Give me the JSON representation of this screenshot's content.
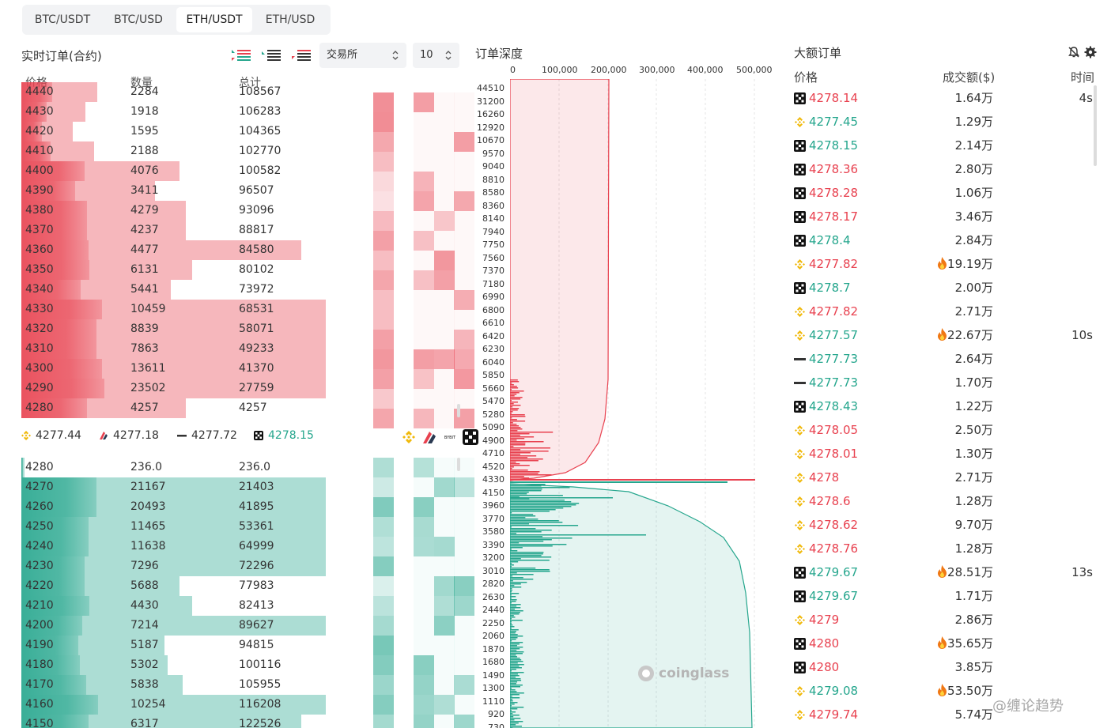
{
  "tabs": [
    "BTC/USDT",
    "BTC/USD",
    "ETH/USDT",
    "ETH/USD"
  ],
  "orderbook": {
    "title": "实时订单(合约)",
    "exchange_select": "交易所",
    "depth_select": "10",
    "col_price": "价格",
    "col_qty": "数量",
    "col_total": "总计",
    "asks": [
      {
        "p": "4440",
        "q": "2284",
        "t": "108567",
        "f": 0.25
      },
      {
        "p": "4430",
        "q": "1918",
        "t": "106283",
        "f": 0.21
      },
      {
        "p": "4420",
        "q": "1595",
        "t": "104365",
        "f": 0.17
      },
      {
        "p": "4410",
        "q": "2188",
        "t": "102770",
        "f": 0.24
      },
      {
        "p": "4400",
        "q": "4076",
        "t": "100582",
        "f": 0.52
      },
      {
        "p": "4390",
        "q": "3411",
        "t": "96507",
        "f": 0.44
      },
      {
        "p": "4380",
        "q": "4279",
        "t": "93096",
        "f": 0.54
      },
      {
        "p": "4370",
        "q": "4237",
        "t": "88817",
        "f": 0.54
      },
      {
        "p": "4360",
        "q": "4477",
        "t": "84580",
        "f": 0.55
      },
      {
        "p": "4350",
        "q": "6131",
        "t": "80102",
        "f": 0.56
      },
      {
        "p": "4340",
        "q": "5441",
        "t": "73972",
        "f": 0.49
      },
      {
        "p": "4330",
        "q": "10459",
        "t": "68531",
        "f": 0.66
      },
      {
        "p": "4320",
        "q": "8839",
        "t": "58071",
        "f": 0.62
      },
      {
        "p": "4310",
        "q": "7863",
        "t": "49233",
        "f": 0.62
      },
      {
        "p": "4300",
        "q": "13611",
        "t": "41370",
        "f": 0.66
      },
      {
        "p": "4290",
        "q": "23502",
        "t": "27759",
        "f": 0.68
      },
      {
        "p": "4280",
        "q": "4257",
        "t": "4257",
        "f": 0.54
      }
    ],
    "asks_bar2": [
      0.25,
      0.21,
      0.17,
      0.24,
      0.52,
      0.44,
      0.54,
      0.54,
      0.92,
      0.56,
      0.49,
      1.0,
      1.0,
      1.0,
      1.0,
      1.0,
      0.54
    ],
    "bids": [
      {
        "p": "4280",
        "q": "236.0",
        "t": "236.0",
        "f": 0.01
      },
      {
        "p": "4270",
        "q": "21167",
        "t": "21403",
        "f": 0.62
      },
      {
        "p": "4260",
        "q": "20493",
        "t": "41895",
        "f": 0.62
      },
      {
        "p": "4250",
        "q": "11465",
        "t": "53361",
        "f": 0.55
      },
      {
        "p": "4240",
        "q": "11638",
        "t": "64999",
        "f": 0.55
      },
      {
        "p": "4230",
        "q": "7296",
        "t": "72296",
        "f": 0.52
      },
      {
        "p": "4220",
        "q": "5688",
        "t": "77983",
        "f": 0.52
      },
      {
        "p": "4210",
        "q": "4430",
        "t": "82413",
        "f": 0.56
      },
      {
        "p": "4200",
        "q": "7214",
        "t": "89627",
        "f": 0.5
      },
      {
        "p": "4190",
        "q": "5187",
        "t": "94815",
        "f": 0.47
      },
      {
        "p": "4180",
        "q": "5302",
        "t": "100116",
        "f": 0.48
      },
      {
        "p": "4170",
        "q": "5838",
        "t": "105955",
        "f": 0.53
      },
      {
        "p": "4160",
        "q": "10254",
        "t": "116208",
        "f": 0.63
      },
      {
        "p": "4150",
        "q": "6317",
        "t": "122526",
        "f": 0.55
      }
    ],
    "bids_bar2": [
      0.01,
      1.0,
      1.0,
      1.0,
      1.0,
      1.0,
      0.52,
      0.56,
      1.0,
      0.47,
      0.48,
      0.53,
      1.0,
      0.92
    ],
    "mid_prices": [
      {
        "v": "4277.44",
        "icon": "binance-icon",
        "color": "#333333"
      },
      {
        "v": "4277.18",
        "icon": "huobi-icon",
        "color": "#333333"
      },
      {
        "v": "4277.72",
        "icon": "bybit-icon",
        "color": "#333333"
      },
      {
        "v": "4278.15",
        "icon": "okx-icon",
        "color": "#25a68d"
      }
    ],
    "colors": {
      "ask": "#e8414f",
      "bid": "#25a68d"
    }
  },
  "depth": {
    "title": "订单深度",
    "x_ticks": [
      "0",
      "100,000",
      "200,000",
      "300,000",
      "400,000",
      "500,000"
    ],
    "y_ticks": [
      "44510",
      "31200",
      "16260",
      "12920",
      "10670",
      "9570",
      "9040",
      "8810",
      "8580",
      "8360",
      "8140",
      "7940",
      "7750",
      "7560",
      "7370",
      "7180",
      "6990",
      "6800",
      "6610",
      "6420",
      "6230",
      "6040",
      "5850",
      "5660",
      "5470",
      "5280",
      "5090",
      "4900",
      "4710",
      "4520",
      "4330",
      "4150",
      "3960",
      "3770",
      "3580",
      "3390",
      "3200",
      "3010",
      "2820",
      "2630",
      "2440",
      "2250",
      "2060",
      "1870",
      "1680",
      "1490",
      "1300",
      "1110",
      "920",
      "730"
    ],
    "watermark": "coinglass"
  },
  "large_orders": {
    "title": "大额订单",
    "col_price": "价格",
    "col_amount": "成交额($)",
    "col_time": "时间",
    "rows": [
      {
        "ex": "okx-icon",
        "price": "4278.14",
        "side": "red",
        "amt": "1.64万",
        "fire": false,
        "time": "4s"
      },
      {
        "ex": "binance-icon",
        "price": "4277.45",
        "side": "grn",
        "amt": "1.29万",
        "fire": false,
        "time": ""
      },
      {
        "ex": "okx-icon",
        "price": "4278.15",
        "side": "grn",
        "amt": "2.14万",
        "fire": false,
        "time": ""
      },
      {
        "ex": "okx-icon",
        "price": "4278.36",
        "side": "red",
        "amt": "2.80万",
        "fire": false,
        "time": ""
      },
      {
        "ex": "okx-icon",
        "price": "4278.28",
        "side": "red",
        "amt": "1.06万",
        "fire": false,
        "time": ""
      },
      {
        "ex": "okx-icon",
        "price": "4278.17",
        "side": "red",
        "amt": "3.46万",
        "fire": false,
        "time": ""
      },
      {
        "ex": "okx-icon",
        "price": "4278.4",
        "side": "grn",
        "amt": "2.84万",
        "fire": false,
        "time": ""
      },
      {
        "ex": "binance-icon",
        "price": "4277.82",
        "side": "red",
        "amt": "19.19万",
        "fire": true,
        "time": ""
      },
      {
        "ex": "okx-icon",
        "price": "4278.7",
        "side": "grn",
        "amt": "2.00万",
        "fire": false,
        "time": ""
      },
      {
        "ex": "binance-icon",
        "price": "4277.82",
        "side": "red",
        "amt": "2.71万",
        "fire": false,
        "time": ""
      },
      {
        "ex": "binance-icon",
        "price": "4277.57",
        "side": "grn",
        "amt": "22.67万",
        "fire": true,
        "time": "10s"
      },
      {
        "ex": "bybit-icon",
        "price": "4277.73",
        "side": "grn",
        "amt": "2.64万",
        "fire": false,
        "time": ""
      },
      {
        "ex": "bybit-icon",
        "price": "4277.73",
        "side": "grn",
        "amt": "1.70万",
        "fire": false,
        "time": ""
      },
      {
        "ex": "okx-icon",
        "price": "4278.43",
        "side": "grn",
        "amt": "1.22万",
        "fire": false,
        "time": ""
      },
      {
        "ex": "binance-icon",
        "price": "4278.05",
        "side": "red",
        "amt": "2.50万",
        "fire": false,
        "time": ""
      },
      {
        "ex": "binance-icon",
        "price": "4278.01",
        "side": "red",
        "amt": "1.30万",
        "fire": false,
        "time": ""
      },
      {
        "ex": "binance-icon",
        "price": "4278",
        "side": "red",
        "amt": "2.71万",
        "fire": false,
        "time": ""
      },
      {
        "ex": "binance-icon",
        "price": "4278.6",
        "side": "red",
        "amt": "1.28万",
        "fire": false,
        "time": ""
      },
      {
        "ex": "binance-icon",
        "price": "4278.62",
        "side": "red",
        "amt": "9.70万",
        "fire": false,
        "time": ""
      },
      {
        "ex": "binance-icon",
        "price": "4278.76",
        "side": "red",
        "amt": "1.28万",
        "fire": false,
        "time": ""
      },
      {
        "ex": "okx-icon",
        "price": "4279.67",
        "side": "grn",
        "amt": "28.51万",
        "fire": true,
        "time": "13s"
      },
      {
        "ex": "okx-icon",
        "price": "4279.67",
        "side": "grn",
        "amt": "1.71万",
        "fire": false,
        "time": ""
      },
      {
        "ex": "binance-icon",
        "price": "4279",
        "side": "red",
        "amt": "2.86万",
        "fire": false,
        "time": ""
      },
      {
        "ex": "okx-icon",
        "price": "4280",
        "side": "red",
        "amt": "35.65万",
        "fire": true,
        "time": ""
      },
      {
        "ex": "okx-icon",
        "price": "4280",
        "side": "red",
        "amt": "3.85万",
        "fire": false,
        "time": ""
      },
      {
        "ex": "binance-icon",
        "price": "4279.08",
        "side": "grn",
        "amt": "53.50万",
        "fire": true,
        "time": ""
      },
      {
        "ex": "binance-icon",
        "price": "4279.74",
        "side": "red",
        "amt": "5.74万",
        "fire": false,
        "time": ""
      }
    ]
  },
  "footer_watermark": "@缠论趋势"
}
